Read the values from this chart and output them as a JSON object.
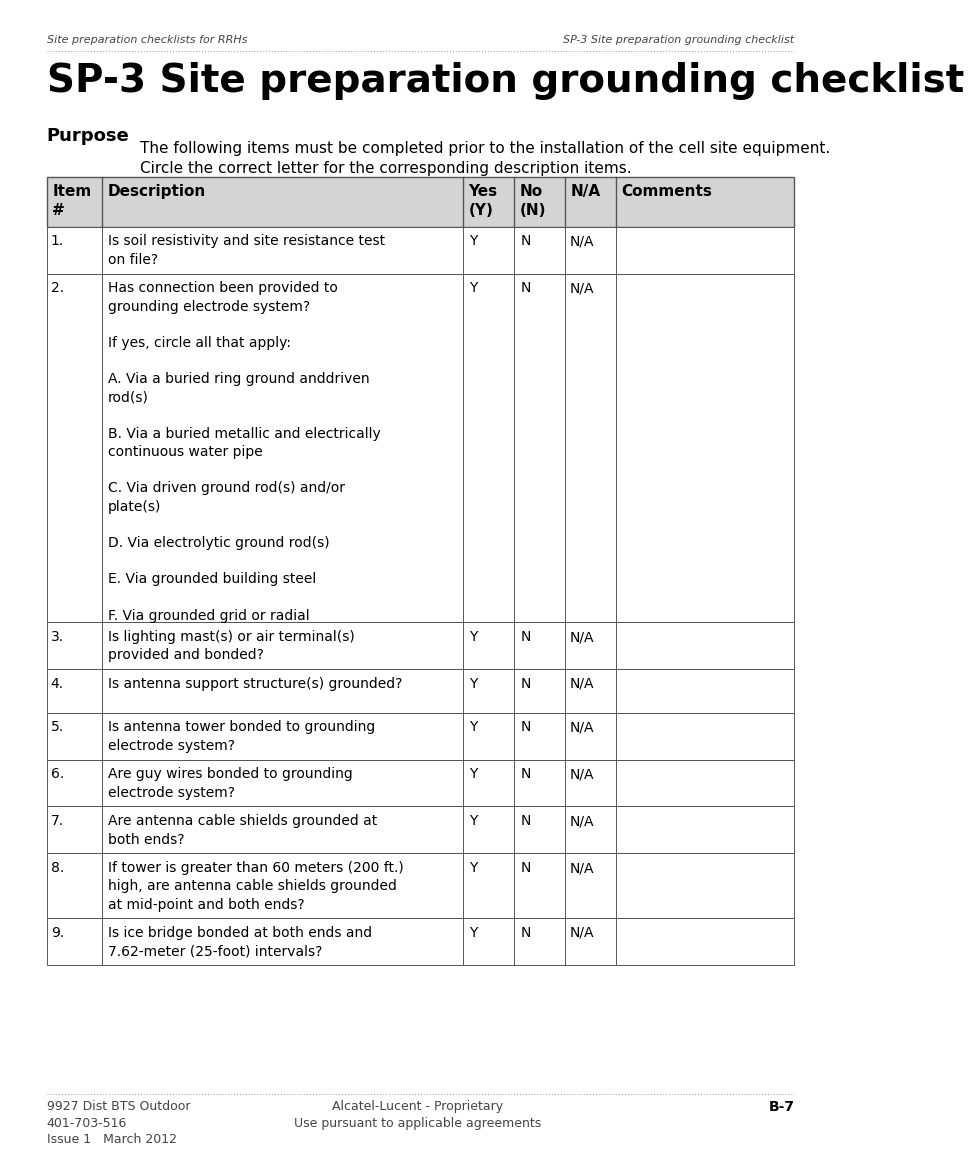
{
  "page_width": 10.52,
  "page_height": 14.87,
  "bg_color": "#ffffff",
  "header_left": "Site preparation checklists for RRHs",
  "header_right": "SP-3 Site preparation grounding checklist",
  "title": "SP-3 Site preparation grounding checklist",
  "title_fontsize": 28,
  "title_color": "#000000",
  "purpose_label": "Purpose",
  "purpose_label_fontsize": 13,
  "purpose_text_line1": "The following items must be completed prior to the installation of the cell site equipment.",
  "purpose_text_line2": "Circle the correct letter for the corresponding description items.",
  "purpose_text_fontsize": 11,
  "table_header_bg": "#d4d4d4",
  "table_header_text_color": "#000000",
  "table_header_fontsize": 11,
  "table_body_fontsize": 10,
  "table_border_color": "#555555",
  "col_headers": [
    "Item\n#",
    "Description",
    "Yes\n(Y)",
    "No\n(N)",
    "N/A",
    "Comments"
  ],
  "col_props": [
    0.068,
    0.445,
    0.063,
    0.063,
    0.063,
    0.22
  ],
  "rows": [
    {
      "num": "1.",
      "desc": "Is soil resistivity and site resistance test\non file?",
      "yes": "Y",
      "no": "N",
      "na": "N/A",
      "comments": "",
      "extra_lines": 0
    },
    {
      "num": "2.",
      "desc": "Has connection been provided to\ngrounding electrode system?\n\nIf yes, circle all that apply:\n\nA. Via a buried ring ground anddriven\nrod(s)\n\nB. Via a buried metallic and electrically\ncontinuous water pipe\n\nC. Via driven ground rod(s) and/or\nplate(s)\n\nD. Via electrolytic ground rod(s)\n\nE. Via grounded building steel\n\nF. Via grounded grid or radial",
      "yes": "Y",
      "no": "N",
      "na": "N/A",
      "comments": "",
      "extra_lines": 0
    },
    {
      "num": "3.",
      "desc": "Is lighting mast(s) or air terminal(s)\nprovided and bonded?",
      "yes": "Y",
      "no": "N",
      "na": "N/A",
      "comments": "",
      "extra_lines": 0
    },
    {
      "num": "4.",
      "desc": "Is antenna support structure(s) grounded?",
      "yes": "Y",
      "no": "N",
      "na": "N/A",
      "comments": "",
      "extra_lines": 0
    },
    {
      "num": "5.",
      "desc": "Is antenna tower bonded to grounding\nelectrode system?",
      "yes": "Y",
      "no": "N",
      "na": "N/A",
      "comments": "",
      "extra_lines": 0
    },
    {
      "num": "6.",
      "desc": "Are guy wires bonded to grounding\nelectrode system?",
      "yes": "Y",
      "no": "N",
      "na": "N/A",
      "comments": "",
      "extra_lines": 0
    },
    {
      "num": "7.",
      "desc": "Are antenna cable shields grounded at\nboth ends?",
      "yes": "Y",
      "no": "N",
      "na": "N/A",
      "comments": "",
      "extra_lines": 0
    },
    {
      "num": "8.",
      "desc": "If tower is greater than 60 meters (200 ft.)\nhigh, are antenna cable shields grounded\nat mid-point and both ends?",
      "yes": "Y",
      "no": "N",
      "na": "N/A",
      "comments": "",
      "extra_lines": 0
    },
    {
      "num": "9.",
      "desc": "Is ice bridge bonded at both ends and\n7.62-meter (25-foot) intervals?",
      "yes": "Y",
      "no": "N",
      "na": "N/A",
      "comments": "",
      "extra_lines": 0
    }
  ],
  "footer_left_line1": "9927 Dist BTS Outdoor",
  "footer_left_line2": "401-703-516",
  "footer_left_line3": "Issue 1   March 2012",
  "footer_center_line1": "Alcatel-Lucent - Proprietary",
  "footer_center_line2": "Use pursuant to applicable agreements",
  "footer_right": "B-7",
  "footer_fontsize": 9,
  "header_fontsize": 8
}
